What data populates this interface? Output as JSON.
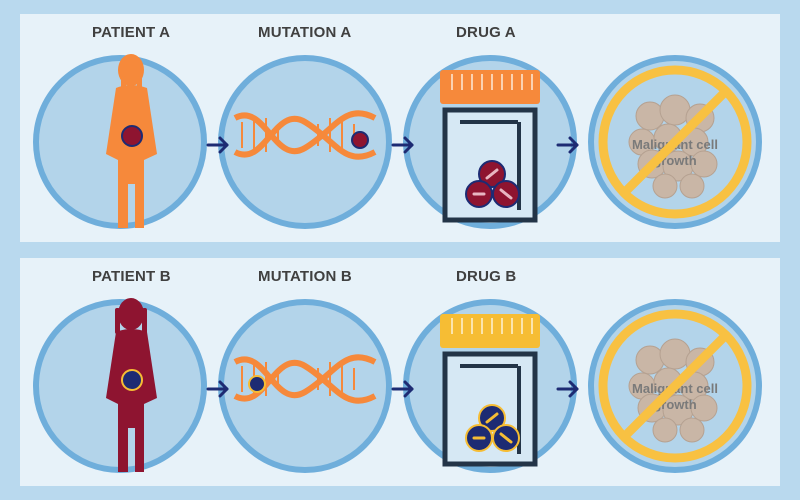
{
  "rows": [
    {
      "patient_label": "PATIENT A",
      "mutation_label": "MUTATION A",
      "drug_label": "DRUG A",
      "outcome_line1": "Malignant cell",
      "outcome_line2": "growth"
    },
    {
      "patient_label": "PATIENT B",
      "mutation_label": "MUTATION B",
      "drug_label": "DRUG B",
      "outcome_line1": "Malignant cell",
      "outcome_line2": "growth"
    }
  ],
  "colors": {
    "background": "#b9d9ee",
    "panel": "#e7f2f9",
    "circle_fill": "#b3d4ea",
    "circle_ring": "#6faedb",
    "orange": "#f6893b",
    "maroon": "#8e1430",
    "navy": "#1d2b73",
    "yellow": "#f6bd34",
    "no_sign": "#f8c142",
    "cells": "#c9b6a6"
  },
  "icons": [
    "child-silhouette-icon",
    "dna-helix-icon",
    "pill-jar-icon",
    "prohibited-icon",
    "arrow-right-icon"
  ]
}
